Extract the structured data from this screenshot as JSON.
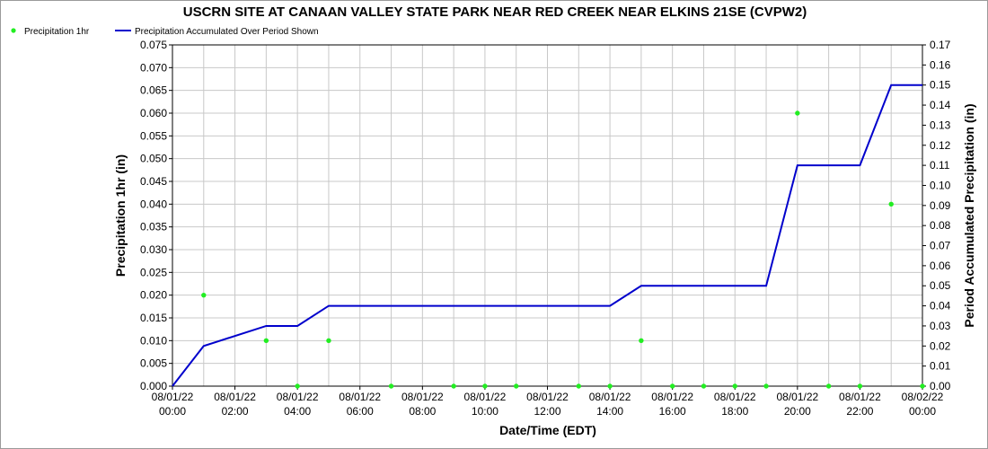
{
  "chart_data": {
    "type": "line",
    "title": "USCRN SITE AT CANAAN VALLEY STATE PARK NEAR RED CREEK NEAR ELKINS 21SE (CVPW2)",
    "xlabel": "Date/Time (EDT)",
    "ylabel_left": "Precipitation 1hr (in)",
    "ylabel_right": "Period Accumulated Precipitation (in)",
    "ylim_left": [
      0,
      0.075
    ],
    "ylim_right": [
      0,
      0.17
    ],
    "xlim_hours": [
      0,
      24
    ],
    "grid": true,
    "legend_position": "top-left",
    "left_ticks": [
      "0.000",
      "0.005",
      "0.010",
      "0.015",
      "0.020",
      "0.025",
      "0.030",
      "0.035",
      "0.040",
      "0.045",
      "0.050",
      "0.055",
      "0.060",
      "0.065",
      "0.070",
      "0.075"
    ],
    "right_ticks": [
      "0.00",
      "0.01",
      "0.02",
      "0.03",
      "0.04",
      "0.05",
      "0.06",
      "0.07",
      "0.08",
      "0.09",
      "0.10",
      "0.11",
      "0.12",
      "0.13",
      "0.14",
      "0.15",
      "0.16",
      "0.17"
    ],
    "x_ticks": [
      {
        "date": "08/01/22",
        "time": "00:00"
      },
      {
        "date": "08/01/22",
        "time": "02:00"
      },
      {
        "date": "08/01/22",
        "time": "04:00"
      },
      {
        "date": "08/01/22",
        "time": "06:00"
      },
      {
        "date": "08/01/22",
        "time": "08:00"
      },
      {
        "date": "08/01/22",
        "time": "10:00"
      },
      {
        "date": "08/01/22",
        "time": "12:00"
      },
      {
        "date": "08/01/22",
        "time": "14:00"
      },
      {
        "date": "08/01/22",
        "time": "16:00"
      },
      {
        "date": "08/01/22",
        "time": "18:00"
      },
      {
        "date": "08/01/22",
        "time": "20:00"
      },
      {
        "date": "08/01/22",
        "time": "22:00"
      },
      {
        "date": "08/02/22",
        "time": "00:00"
      }
    ],
    "series": [
      {
        "name": "Precipitation 1hr",
        "kind": "scatter",
        "axis": "left",
        "color": "#22ee22",
        "x": [
          1,
          3,
          4,
          5,
          7,
          9,
          10,
          11,
          13,
          14,
          15,
          16,
          17,
          18,
          19,
          20,
          21,
          22,
          23,
          24
        ],
        "values": [
          0.02,
          0.01,
          0.0,
          0.01,
          0.0,
          0.0,
          0.0,
          0.0,
          0.0,
          0.0,
          0.01,
          0.0,
          0.0,
          0.0,
          0.0,
          0.06,
          0.0,
          0.0,
          0.04,
          0.0
        ]
      },
      {
        "name": "Precipitation Accumulated Over Period Shown",
        "kind": "line",
        "axis": "right",
        "color": "#0000cc",
        "x": [
          0,
          1,
          3,
          4,
          5,
          14,
          15,
          19,
          20,
          22,
          23,
          24
        ],
        "values": [
          0.0,
          0.02,
          0.03,
          0.03,
          0.04,
          0.04,
          0.05,
          0.05,
          0.11,
          0.11,
          0.15,
          0.15
        ]
      }
    ]
  }
}
